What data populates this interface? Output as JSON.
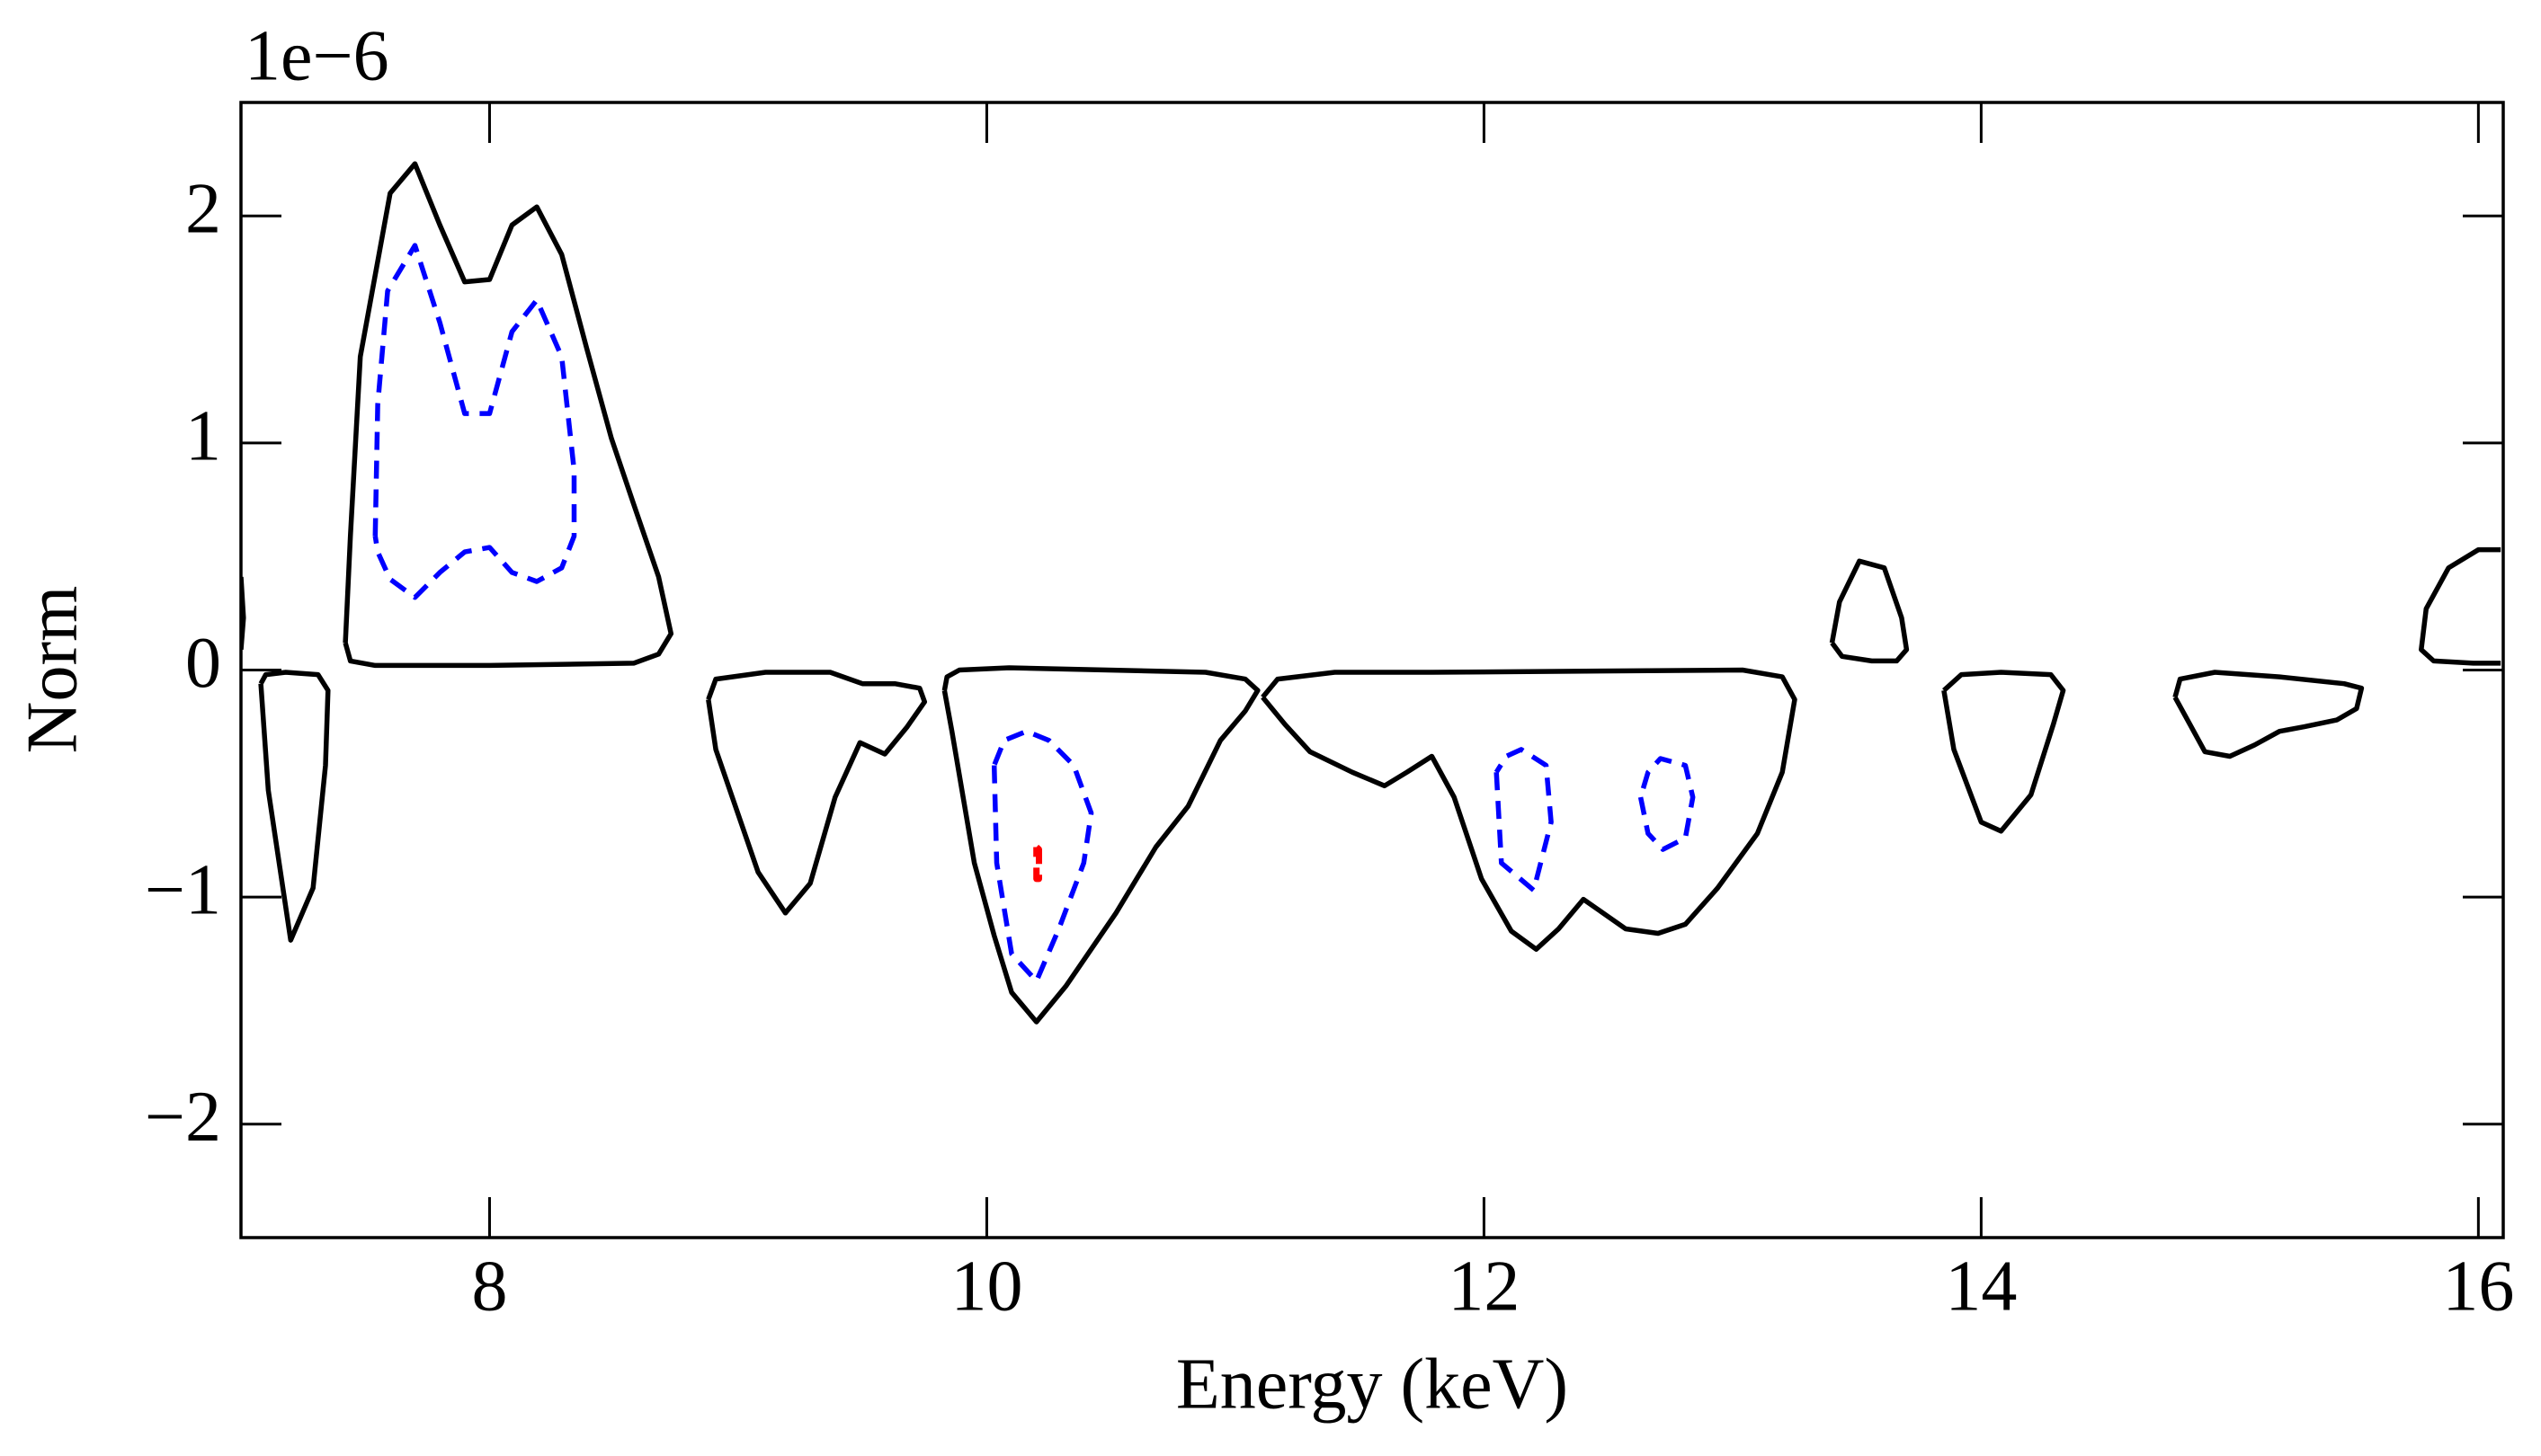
{
  "chart_data": {
    "type": "contour",
    "offset_label": "1e−6",
    "xlabel": "Energy (keV)",
    "ylabel": "Norm",
    "xlim": [
      7,
      16.1
    ],
    "ylim": [
      -2.5,
      2.5
    ],
    "xticks": [
      8,
      10,
      12,
      14,
      16
    ],
    "yticks": [
      {
        "value": -2,
        "label": "−2"
      },
      {
        "value": -1,
        "label": "−1"
      },
      0,
      1,
      2
    ],
    "series": [
      {
        "color": "#000000",
        "linestyle": "solid",
        "x": [
          7.42,
          7.44,
          7.48,
          7.54,
          7.6,
          7.7,
          7.8,
          7.9,
          8.0,
          8.09,
          8.19,
          8.29,
          8.39,
          8.49,
          8.58,
          8.68,
          8.73,
          8.68,
          8.58,
          8.0,
          7.54,
          7.44,
          7.42
        ],
        "y": [
          0.12,
          0.59,
          1.38,
          1.74,
          2.1,
          2.23,
          1.96,
          1.71,
          1.72,
          1.96,
          2.04,
          1.83,
          1.42,
          1.02,
          0.73,
          0.41,
          0.16,
          0.07,
          0.03,
          0.02,
          0.02,
          0.04,
          0.12
        ]
      },
      {
        "color": "#0000ff",
        "linestyle": "dashed",
        "x": [
          7.54,
          7.55,
          7.59,
          7.7,
          7.8,
          7.9,
          8.0,
          8.09,
          8.19,
          8.29,
          8.34,
          8.34,
          8.29,
          8.19,
          8.09,
          8.0,
          7.9,
          7.8,
          7.7,
          7.6,
          7.55,
          7.54
        ],
        "y": [
          0.59,
          1.17,
          1.67,
          1.87,
          1.53,
          1.13,
          1.13,
          1.49,
          1.63,
          1.38,
          0.88,
          0.59,
          0.45,
          0.39,
          0.43,
          0.54,
          0.52,
          0.43,
          0.32,
          0.4,
          0.52,
          0.59
        ]
      },
      {
        "color": "#000000",
        "linestyle": "solid",
        "x": [
          7.0,
          7.01,
          7.0
        ],
        "y": [
          0.41,
          0.23,
          0.09
        ]
      },
      {
        "color": "#000000",
        "linestyle": "solid",
        "x": [
          7.08,
          7.11,
          7.2,
          7.29,
          7.34,
          7.35,
          7.31,
          7.18,
          7.1,
          7.08
        ],
        "y": [
          -0.06,
          -0.53,
          -1.19,
          -0.96,
          -0.42,
          -0.09,
          -0.02,
          -0.01,
          -0.02,
          -0.06
        ]
      },
      {
        "color": "#000000",
        "linestyle": "solid",
        "x": [
          8.88,
          8.91,
          9.08,
          9.19,
          9.29,
          9.39,
          9.49,
          9.59,
          9.68,
          9.75,
          9.73,
          9.63,
          9.5,
          9.37,
          9.11,
          8.91,
          8.88
        ],
        "y": [
          -0.13,
          -0.35,
          -0.89,
          -1.07,
          -0.94,
          -0.56,
          -0.32,
          -0.37,
          -0.25,
          -0.14,
          -0.08,
          -0.06,
          -0.06,
          -0.01,
          -0.01,
          -0.04,
          -0.13
        ]
      },
      {
        "color": "#000000",
        "linestyle": "solid",
        "x": [
          9.83,
          9.86,
          9.95,
          10.03,
          10.1,
          10.2,
          10.32,
          10.52,
          10.68,
          10.81,
          10.94,
          11.04,
          11.09,
          11.04,
          10.88,
          10.09,
          9.89,
          9.84,
          9.83
        ],
        "y": [
          -0.09,
          -0.27,
          -0.85,
          -1.17,
          -1.42,
          -1.55,
          -1.39,
          -1.07,
          -0.78,
          -0.6,
          -0.31,
          -0.18,
          -0.09,
          -0.04,
          -0.01,
          0.01,
          0.0,
          -0.03,
          -0.09
        ]
      },
      {
        "color": "#0000ff",
        "linestyle": "dashed",
        "x": [
          10.03,
          10.04,
          10.1,
          10.2,
          10.29,
          10.39,
          10.42,
          10.35,
          10.25,
          10.16,
          10.07,
          10.03
        ],
        "y": [
          -0.42,
          -0.85,
          -1.25,
          -1.37,
          -1.14,
          -0.85,
          -0.63,
          -0.42,
          -0.31,
          -0.27,
          -0.31,
          -0.42
        ]
      },
      {
        "color": "#ff0000",
        "linestyle": "dashed",
        "x": [
          10.2,
          10.21,
          10.21,
          10.2,
          10.2
        ],
        "y": [
          -0.78,
          -0.79,
          -0.92,
          -0.92,
          -0.78
        ]
      },
      {
        "color": "#000000",
        "linestyle": "solid",
        "x": [
          11.11,
          11.2,
          11.3,
          11.47,
          11.6,
          11.69,
          11.79,
          11.88,
          11.99,
          12.11,
          12.21,
          12.3,
          12.4,
          12.57,
          12.7,
          12.81,
          12.94,
          13.1,
          13.2,
          13.25,
          13.2,
          13.04,
          11.79,
          11.4,
          11.17,
          11.11
        ],
        "y": [
          -0.12,
          -0.24,
          -0.36,
          -0.45,
          -0.51,
          -0.45,
          -0.38,
          -0.56,
          -0.92,
          -1.15,
          -1.23,
          -1.14,
          -1.01,
          -1.14,
          -1.16,
          -1.12,
          -0.96,
          -0.72,
          -0.45,
          -0.13,
          -0.03,
          0.0,
          -0.01,
          -0.01,
          -0.04,
          -0.12
        ]
      },
      {
        "color": "#0000ff",
        "linestyle": "dashed",
        "x": [
          12.05,
          12.07,
          12.2,
          12.27,
          12.25,
          12.15,
          12.09,
          12.05
        ],
        "y": [
          -0.45,
          -0.85,
          -0.97,
          -0.67,
          -0.42,
          -0.35,
          -0.38,
          -0.45
        ]
      },
      {
        "color": "#0000ff",
        "linestyle": "dashed",
        "x": [
          12.63,
          12.66,
          12.72,
          12.81,
          12.84,
          12.81,
          12.71,
          12.66,
          12.63
        ],
        "y": [
          -0.56,
          -0.72,
          -0.79,
          -0.74,
          -0.56,
          -0.42,
          -0.39,
          -0.45,
          -0.56
        ]
      },
      {
        "color": "#000000",
        "linestyle": "solid",
        "x": [
          13.4,
          13.43,
          13.51,
          13.61,
          13.68,
          13.7,
          13.66,
          13.56,
          13.44,
          13.4
        ],
        "y": [
          0.12,
          0.3,
          0.48,
          0.45,
          0.23,
          0.09,
          0.04,
          0.04,
          0.06,
          0.12
        ]
      },
      {
        "color": "#000000",
        "linestyle": "solid",
        "x": [
          13.85,
          13.89,
          14.0,
          14.08,
          14.2,
          14.29,
          14.33,
          14.28,
          14.08,
          13.92,
          13.85
        ],
        "y": [
          -0.09,
          -0.35,
          -0.67,
          -0.71,
          -0.55,
          -0.24,
          -0.09,
          -0.02,
          -0.01,
          -0.02,
          -0.09
        ]
      },
      {
        "color": "#000000",
        "linestyle": "solid",
        "x": [
          14.78,
          14.84,
          14.9,
          15.0,
          15.1,
          15.2,
          15.3,
          15.43,
          15.51,
          15.53,
          15.46,
          15.2,
          14.94,
          14.8,
          14.78
        ],
        "y": [
          -0.12,
          -0.24,
          -0.36,
          -0.38,
          -0.33,
          -0.27,
          -0.25,
          -0.22,
          -0.17,
          -0.08,
          -0.06,
          -0.03,
          -0.01,
          -0.04,
          -0.12
        ]
      },
      {
        "color": "#000000",
        "linestyle": "solid",
        "x": [
          16.09,
          16.0,
          15.88,
          15.79,
          15.77,
          15.82,
          15.98,
          16.09
        ],
        "y": [
          0.53,
          0.53,
          0.45,
          0.27,
          0.09,
          0.04,
          0.03,
          0.03
        ]
      }
    ]
  }
}
